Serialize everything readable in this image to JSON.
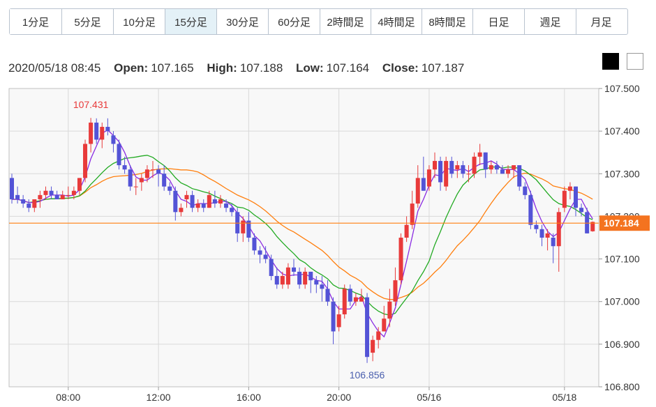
{
  "timeframe_tabs": [
    {
      "label": "1分足",
      "active": false
    },
    {
      "label": "5分足",
      "active": false
    },
    {
      "label": "10分足",
      "active": false
    },
    {
      "label": "15分足",
      "active": true
    },
    {
      "label": "30分足",
      "active": false
    },
    {
      "label": "60分足",
      "active": false
    },
    {
      "label": "2時間足",
      "active": false
    },
    {
      "label": "4時間足",
      "active": false
    },
    {
      "label": "8時間足",
      "active": false
    },
    {
      "label": "日足",
      "active": false
    },
    {
      "label": "週足",
      "active": false
    },
    {
      "label": "月足",
      "active": false
    }
  ],
  "ohlc": {
    "datetime": "2020/05/18 08:45",
    "open_label": "Open:",
    "open": "107.165",
    "high_label": "High:",
    "high": "107.188",
    "low_label": "Low:",
    "low": "107.164",
    "close_label": "Close:",
    "close": "107.187"
  },
  "theme_swatches": [
    {
      "name": "black",
      "color": "#000000"
    },
    {
      "name": "white",
      "color": "#ffffff"
    }
  ],
  "colors": {
    "up": "#e83a3a",
    "down": "#5353d6",
    "ma_purple": "#8a2be2",
    "ma_green": "#22aa22",
    "ma_orange": "#ff7f0e",
    "price_line": "#ff7f0e",
    "price_tag": "#f4731f",
    "grid": "#d9d9d9",
    "plot_bg": "#f8f8f8"
  },
  "chart_data": {
    "type": "candlestick",
    "symbol_unit": "JPY",
    "ylim": [
      106.8,
      107.5
    ],
    "y_ticks": [
      "107.500",
      "107.400",
      "107.300",
      "107.200",
      "107.100",
      "107.000",
      "106.900",
      "106.800"
    ],
    "x_tick_labels": [
      {
        "label": "08:00",
        "index": 10
      },
      {
        "label": "12:00",
        "index": 26
      },
      {
        "label": "16:00",
        "index": 42
      },
      {
        "label": "20:00",
        "index": 58
      },
      {
        "label": "05/16",
        "index": 74
      },
      {
        "label": "05/18",
        "index": 98
      }
    ],
    "current_price": "107.184",
    "annotations": [
      {
        "label": "107.431",
        "index": 14,
        "value": 107.431,
        "position": "above"
      },
      {
        "label": "106.856",
        "index": 63,
        "value": 106.856,
        "position": "below"
      }
    ],
    "candles": [
      [
        107.29,
        107.3,
        107.23,
        107.24
      ],
      [
        107.25,
        107.27,
        107.23,
        107.24
      ],
      [
        107.24,
        107.25,
        107.22,
        107.23
      ],
      [
        107.23,
        107.24,
        107.21,
        107.22
      ],
      [
        107.22,
        107.24,
        107.21,
        107.24
      ],
      [
        107.24,
        107.26,
        107.22,
        107.25
      ],
      [
        107.25,
        107.27,
        107.24,
        107.26
      ],
      [
        107.26,
        107.27,
        107.24,
        107.25
      ],
      [
        107.25,
        107.26,
        107.24,
        107.24
      ],
      [
        107.24,
        107.26,
        107.24,
        107.25
      ],
      [
        107.25,
        107.27,
        107.24,
        107.25
      ],
      [
        107.25,
        107.27,
        107.24,
        107.26
      ],
      [
        107.26,
        107.29,
        107.25,
        107.29
      ],
      [
        107.29,
        107.38,
        107.28,
        107.37
      ],
      [
        107.37,
        107.431,
        107.35,
        107.42
      ],
      [
        107.42,
        107.43,
        107.37,
        107.38
      ],
      [
        107.38,
        107.42,
        107.36,
        107.41
      ],
      [
        107.41,
        107.43,
        107.39,
        107.4
      ],
      [
        107.39,
        107.4,
        107.35,
        107.37
      ],
      [
        107.37,
        107.38,
        107.31,
        107.32
      ],
      [
        107.32,
        107.34,
        107.3,
        107.31
      ],
      [
        107.31,
        107.32,
        107.26,
        107.27
      ],
      [
        107.27,
        107.29,
        107.25,
        107.27
      ],
      [
        107.28,
        107.3,
        107.26,
        107.29
      ],
      [
        107.29,
        107.32,
        107.28,
        107.31
      ],
      [
        107.31,
        107.33,
        107.29,
        107.31
      ],
      [
        107.31,
        107.32,
        107.27,
        107.3
      ],
      [
        107.3,
        107.32,
        107.26,
        107.27
      ],
      [
        107.27,
        107.28,
        107.25,
        107.26
      ],
      [
        107.26,
        107.27,
        107.19,
        107.21
      ],
      [
        107.21,
        107.23,
        107.2,
        107.22
      ],
      [
        107.24,
        107.26,
        107.22,
        107.25
      ],
      [
        107.25,
        107.26,
        107.21,
        107.22
      ],
      [
        107.22,
        107.24,
        107.21,
        107.23
      ],
      [
        107.23,
        107.24,
        107.21,
        107.22
      ],
      [
        107.22,
        107.26,
        107.22,
        107.25
      ],
      [
        107.24,
        107.26,
        107.22,
        107.23
      ],
      [
        107.23,
        107.25,
        107.22,
        107.24
      ],
      [
        107.23,
        107.24,
        107.21,
        107.22
      ],
      [
        107.22,
        107.23,
        107.2,
        107.21
      ],
      [
        107.21,
        107.22,
        107.14,
        107.16
      ],
      [
        107.16,
        107.2,
        107.14,
        107.19
      ],
      [
        107.19,
        107.21,
        107.14,
        107.15
      ],
      [
        107.15,
        107.16,
        107.11,
        107.12
      ],
      [
        107.12,
        107.13,
        107.09,
        107.11
      ],
      [
        107.11,
        107.13,
        107.09,
        107.1
      ],
      [
        107.1,
        107.11,
        107.05,
        107.06
      ],
      [
        107.06,
        107.08,
        107.03,
        107.04
      ],
      [
        107.04,
        107.07,
        107.03,
        107.06
      ],
      [
        107.04,
        107.09,
        107.03,
        107.08
      ],
      [
        107.08,
        107.1,
        107.06,
        107.07
      ],
      [
        107.07,
        107.08,
        107.03,
        107.04
      ],
      [
        107.04,
        107.08,
        107.03,
        107.07
      ],
      [
        107.07,
        107.07,
        107.02,
        107.05
      ],
      [
        107.05,
        107.06,
        107.02,
        107.04
      ],
      [
        107.04,
        107.06,
        107.0,
        107.03
      ],
      [
        107.03,
        107.05,
        106.99,
        107.0
      ],
      [
        107.0,
        107.01,
        106.9,
        106.93
      ],
      [
        106.94,
        106.99,
        106.93,
        106.97
      ],
      [
        106.97,
        107.04,
        106.96,
        107.03
      ],
      [
        107.03,
        107.04,
        106.99,
        107.0
      ],
      [
        107.0,
        107.02,
        106.99,
        107.01
      ],
      [
        107.0,
        107.03,
        107.0,
        107.01
      ],
      [
        107.01,
        107.02,
        106.856,
        106.87
      ],
      [
        106.88,
        106.92,
        106.86,
        106.91
      ],
      [
        106.91,
        106.94,
        106.89,
        106.93
      ],
      [
        106.93,
        106.99,
        106.93,
        106.96
      ],
      [
        106.96,
        107.03,
        106.94,
        107.0
      ],
      [
        107.0,
        107.08,
        106.99,
        107.05
      ],
      [
        107.05,
        107.16,
        107.04,
        107.15
      ],
      [
        107.15,
        107.2,
        107.14,
        107.18
      ],
      [
        107.18,
        107.26,
        107.17,
        107.23
      ],
      [
        107.23,
        107.32,
        107.22,
        107.29
      ],
      [
        107.29,
        107.34,
        107.26,
        107.26
      ],
      [
        107.27,
        107.32,
        107.26,
        107.31
      ],
      [
        107.31,
        107.35,
        107.29,
        107.33
      ],
      [
        107.33,
        107.34,
        107.26,
        107.28
      ],
      [
        107.27,
        107.34,
        107.26,
        107.33
      ],
      [
        107.33,
        107.34,
        107.29,
        107.3
      ],
      [
        107.31,
        107.33,
        107.29,
        107.32
      ],
      [
        107.32,
        107.33,
        107.29,
        107.3
      ],
      [
        107.3,
        107.32,
        107.28,
        107.3
      ],
      [
        107.3,
        107.35,
        107.29,
        107.34
      ],
      [
        107.34,
        107.37,
        107.32,
        107.35
      ],
      [
        107.35,
        107.35,
        107.29,
        107.31
      ],
      [
        107.31,
        107.33,
        107.3,
        107.32
      ],
      [
        107.32,
        107.33,
        107.3,
        107.31
      ],
      [
        107.31,
        107.32,
        107.3,
        107.3
      ],
      [
        107.3,
        107.32,
        107.29,
        107.31
      ],
      [
        107.31,
        107.32,
        107.29,
        107.32
      ],
      [
        107.32,
        107.32,
        107.26,
        107.27
      ],
      [
        107.27,
        107.28,
        107.24,
        107.25
      ],
      [
        107.25,
        107.26,
        107.17,
        107.18
      ],
      [
        107.18,
        107.19,
        107.16,
        107.17
      ],
      [
        107.17,
        107.18,
        107.13,
        107.15
      ],
      [
        107.15,
        107.17,
        107.12,
        107.16
      ],
      [
        107.15,
        107.16,
        107.09,
        107.13
      ],
      [
        107.13,
        107.22,
        107.07,
        107.21
      ],
      [
        107.22,
        107.27,
        107.21,
        107.26
      ],
      [
        107.26,
        107.28,
        107.24,
        107.27
      ],
      [
        107.27,
        107.27,
        107.2,
        107.22
      ],
      [
        107.22,
        107.23,
        107.2,
        107.21
      ],
      [
        107.21,
        107.22,
        107.16,
        107.16
      ],
      [
        107.165,
        107.188,
        107.164,
        107.187
      ]
    ]
  }
}
